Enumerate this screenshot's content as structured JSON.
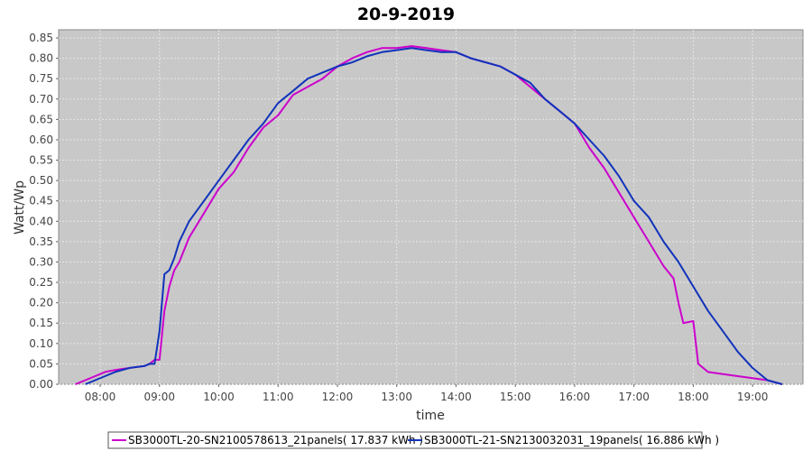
{
  "chart_data": {
    "type": "line",
    "title": "20-9-2019",
    "xlabel": "time",
    "ylabel": "Watt/Wp",
    "x_tick_labels": [
      "08:00",
      "09:00",
      "10:00",
      "11:00",
      "12:00",
      "13:00",
      "14:00",
      "15:00",
      "16:00",
      "17:00",
      "18:00",
      "19:00"
    ],
    "x_tick_hours": [
      8,
      9,
      10,
      11,
      12,
      13,
      14,
      15,
      16,
      17,
      18,
      19
    ],
    "xlim_hours": [
      7.3,
      19.85
    ],
    "y_tick_labels": [
      "0.00",
      "0.05",
      "0.10",
      "0.15",
      "0.20",
      "0.25",
      "0.30",
      "0.35",
      "0.40",
      "0.45",
      "0.50",
      "0.55",
      "0.60",
      "0.65",
      "0.70",
      "0.75",
      "0.80",
      "0.85"
    ],
    "y_tick_values": [
      0,
      0.05,
      0.1,
      0.15,
      0.2,
      0.25,
      0.3,
      0.35,
      0.4,
      0.45,
      0.5,
      0.55,
      0.6,
      0.65,
      0.7,
      0.75,
      0.8,
      0.85
    ],
    "ylim": [
      0,
      0.87
    ],
    "grid": true,
    "legend_position": "bottom",
    "series": [
      {
        "name": "SB3000TL-20-SN2100578613_21panels( 17.837 kWh )",
        "color": "#cc00cc",
        "x": [
          "07:35",
          "07:45",
          "07:55",
          "08:05",
          "08:15",
          "08:30",
          "08:45",
          "08:50",
          "08:55",
          "09:00",
          "09:05",
          "09:10",
          "09:15",
          "09:20",
          "09:30",
          "09:45",
          "10:00",
          "10:15",
          "10:30",
          "10:45",
          "11:00",
          "11:15",
          "11:30",
          "11:45",
          "12:00",
          "12:15",
          "12:30",
          "12:45",
          "13:00",
          "13:15",
          "13:30",
          "13:45",
          "14:00",
          "14:15",
          "14:30",
          "14:45",
          "15:00",
          "15:15",
          "15:30",
          "15:45",
          "16:00",
          "16:15",
          "16:30",
          "16:45",
          "17:00",
          "17:15",
          "17:30",
          "17:40",
          "17:45",
          "17:50",
          "18:00",
          "18:05",
          "18:15",
          "18:30",
          "18:45",
          "19:00",
          "19:15",
          "19:30"
        ],
        "y": [
          0.0,
          0.01,
          0.02,
          0.03,
          0.035,
          0.04,
          0.045,
          0.05,
          0.06,
          0.06,
          0.18,
          0.24,
          0.28,
          0.3,
          0.36,
          0.42,
          0.48,
          0.52,
          0.58,
          0.63,
          0.66,
          0.71,
          0.73,
          0.75,
          0.78,
          0.8,
          0.815,
          0.825,
          0.825,
          0.83,
          0.825,
          0.82,
          0.815,
          0.8,
          0.79,
          0.78,
          0.76,
          0.73,
          0.7,
          0.67,
          0.64,
          0.58,
          0.53,
          0.47,
          0.41,
          0.35,
          0.29,
          0.26,
          0.2,
          0.15,
          0.155,
          0.05,
          0.03,
          0.025,
          0.02,
          0.015,
          0.01,
          0.0
        ]
      },
      {
        "name": "SB3000TL-21-SN2130032031_19panels( 16.886 kWh )",
        "color": "#1133bb",
        "x": [
          "07:45",
          "07:55",
          "08:05",
          "08:15",
          "08:30",
          "08:45",
          "08:50",
          "08:55",
          "09:00",
          "09:05",
          "09:10",
          "09:15",
          "09:20",
          "09:30",
          "09:45",
          "10:00",
          "10:15",
          "10:30",
          "10:45",
          "11:00",
          "11:15",
          "11:30",
          "11:45",
          "12:00",
          "12:15",
          "12:30",
          "12:45",
          "13:00",
          "13:15",
          "13:30",
          "13:45",
          "14:00",
          "14:15",
          "14:30",
          "14:45",
          "15:00",
          "15:15",
          "15:30",
          "15:45",
          "16:00",
          "16:15",
          "16:30",
          "16:45",
          "17:00",
          "17:15",
          "17:30",
          "17:45",
          "18:00",
          "18:15",
          "18:30",
          "18:45",
          "19:00",
          "19:15",
          "19:30"
        ],
        "y": [
          0.0,
          0.01,
          0.02,
          0.03,
          0.04,
          0.045,
          0.05,
          0.05,
          0.13,
          0.27,
          0.28,
          0.31,
          0.35,
          0.4,
          0.45,
          0.5,
          0.55,
          0.6,
          0.64,
          0.69,
          0.72,
          0.75,
          0.765,
          0.78,
          0.79,
          0.805,
          0.815,
          0.82,
          0.825,
          0.82,
          0.815,
          0.815,
          0.8,
          0.79,
          0.78,
          0.76,
          0.74,
          0.7,
          0.67,
          0.64,
          0.6,
          0.56,
          0.51,
          0.45,
          0.41,
          0.35,
          0.3,
          0.24,
          0.18,
          0.13,
          0.08,
          0.04,
          0.01,
          0.0
        ]
      }
    ]
  },
  "colors": {
    "plot_background": "#c8c8c8",
    "grid": "#e6e6e6"
  }
}
